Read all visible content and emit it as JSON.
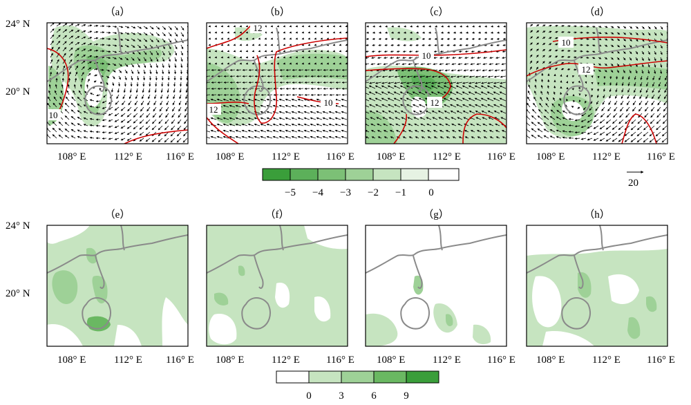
{
  "panels_top": [
    {
      "label": "（a）",
      "contours": [
        "10"
      ]
    },
    {
      "label": "（b）",
      "contours": [
        "12",
        "12",
        "10"
      ]
    },
    {
      "label": "（c）",
      "contours": [
        "10",
        "12"
      ]
    },
    {
      "label": "（d）",
      "contours": [
        "10",
        "12"
      ]
    }
  ],
  "panels_bottom": [
    {
      "label": "（e）"
    },
    {
      "label": "（f）"
    },
    {
      "label": "（g）"
    },
    {
      "label": "（h）"
    }
  ],
  "axes": {
    "y_ticks": [
      "24° N",
      "20° N"
    ],
    "x_ticks": [
      "108° E",
      "112° E",
      "116° E"
    ]
  },
  "colorbar_top": {
    "labels": [
      "−5",
      "−4",
      "−3",
      "−2",
      "−1",
      "0"
    ],
    "colors": [
      "#3a9e3a",
      "#5cb05a",
      "#7cc076",
      "#9ed197",
      "#c6e4c0",
      "#ffffff"
    ]
  },
  "colorbar_bottom": {
    "labels": [
      "0",
      "3",
      "6",
      "9"
    ],
    "colors": [
      "#ffffff",
      "#c6e4c0",
      "#9ed197",
      "#6ab862",
      "#3a9e3a"
    ]
  },
  "reference_vector": {
    "label": "20"
  },
  "colors": {
    "contour": "#cc0000",
    "coast": "#8a8a8a",
    "frame": "#000000"
  }
}
